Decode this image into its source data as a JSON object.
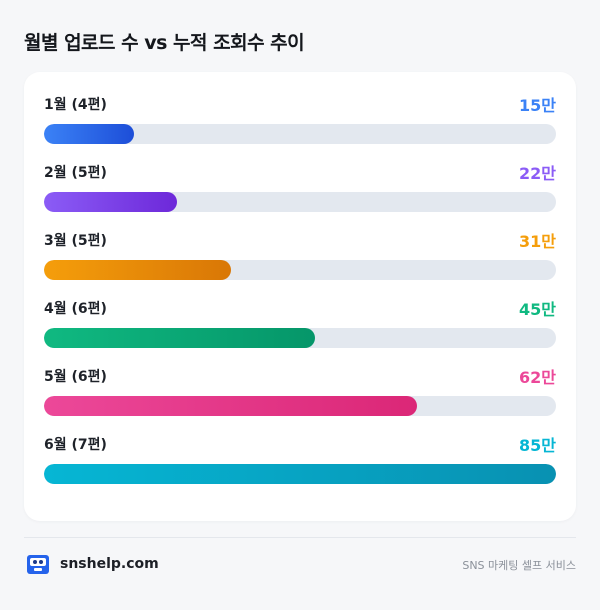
{
  "header": {
    "title": "월별 업로드 수 vs 누적 조회수 추이"
  },
  "chart_data": {
    "type": "bar",
    "orientation": "horizontal",
    "title": "월별 업로드 수 vs 누적 조회수 추이",
    "categories": [
      "1월 (4편)",
      "2월 (5편)",
      "3월 (5편)",
      "4월 (6편)",
      "5월 (6편)",
      "6월 (7편)"
    ],
    "values": [
      15,
      22,
      31,
      45,
      62,
      85
    ],
    "value_labels": [
      "15만",
      "22만",
      "31만",
      "45만",
      "62만",
      "85만"
    ],
    "xlim": [
      0,
      85
    ],
    "grid": false,
    "colors": [
      [
        "#3b82f6",
        "#1d4ed8"
      ],
      [
        "#8b5cf6",
        "#6d28d9"
      ],
      [
        "#f59e0b",
        "#d97706"
      ],
      [
        "#10b981",
        "#059669"
      ],
      [
        "#ec4899",
        "#db2777"
      ],
      [
        "#06b6d4",
        "#0891b2"
      ]
    ],
    "value_colors": [
      "#3b82f6",
      "#8b5cf6",
      "#f59e0b",
      "#10b981",
      "#ec4899",
      "#06b6d4"
    ]
  },
  "footer": {
    "brand": "snshelp.com",
    "tagline": "SNS 마케팅 셀프 서비스",
    "logo_icon": "robot-face-icon"
  }
}
